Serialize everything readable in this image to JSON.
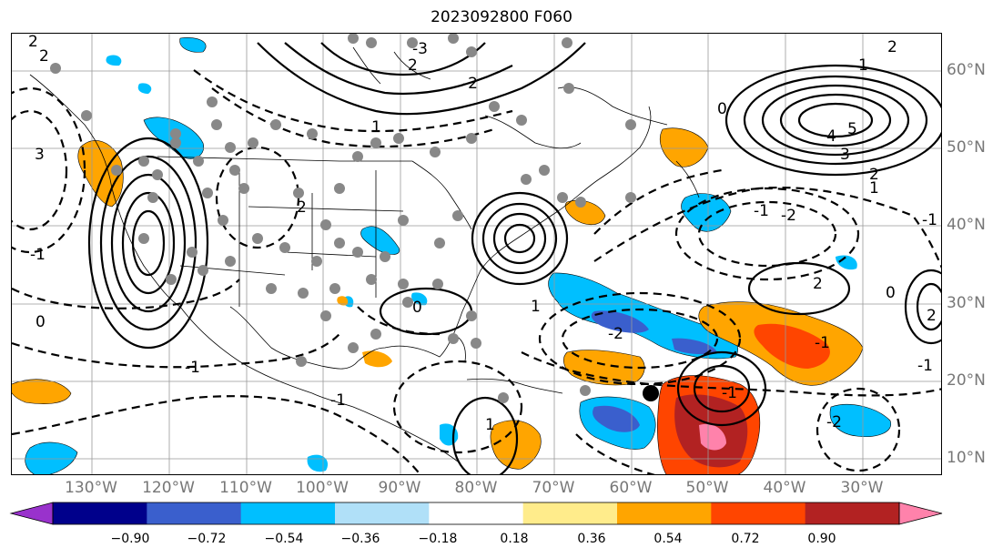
{
  "title": "2023092800 F060",
  "longitude_labels": [
    "130°W",
    "120°W",
    "110°W",
    "100°W",
    "90°W",
    "80°W",
    "70°W",
    "60°W",
    "50°W",
    "40°W",
    "30°W"
  ],
  "latitude_labels": [
    "60°N",
    "50°N",
    "40°N",
    "30°N",
    "20°N",
    "10°N"
  ],
  "colorbar": {
    "ticks": [
      "−0.90",
      "−0.72",
      "−0.54",
      "−0.36",
      "−0.18",
      "0.18",
      "0.36",
      "0.54",
      "0.72",
      "0.90"
    ],
    "colors": [
      "#9932cc",
      "#00008b",
      "#3a5fcd",
      "#00bfff",
      "#b0e0f8",
      "#ffffff",
      "#ffec8b",
      "#ffa500",
      "#ff4500",
      "#b22222",
      "#ff82ab"
    ]
  },
  "contour_labels": [
    "2",
    "2",
    "3",
    "-1",
    "2",
    "1",
    "-3",
    "-2",
    "0",
    "-1",
    "1",
    "-2",
    "0",
    "-1",
    "5",
    "4",
    "3",
    "2",
    "1",
    "2",
    "1",
    "-2",
    "2",
    "-1",
    "-1",
    "-1",
    "0",
    "2",
    "0",
    "-2",
    "2",
    "-1",
    "-1",
    "1"
  ],
  "marker": "filled-circle"
}
